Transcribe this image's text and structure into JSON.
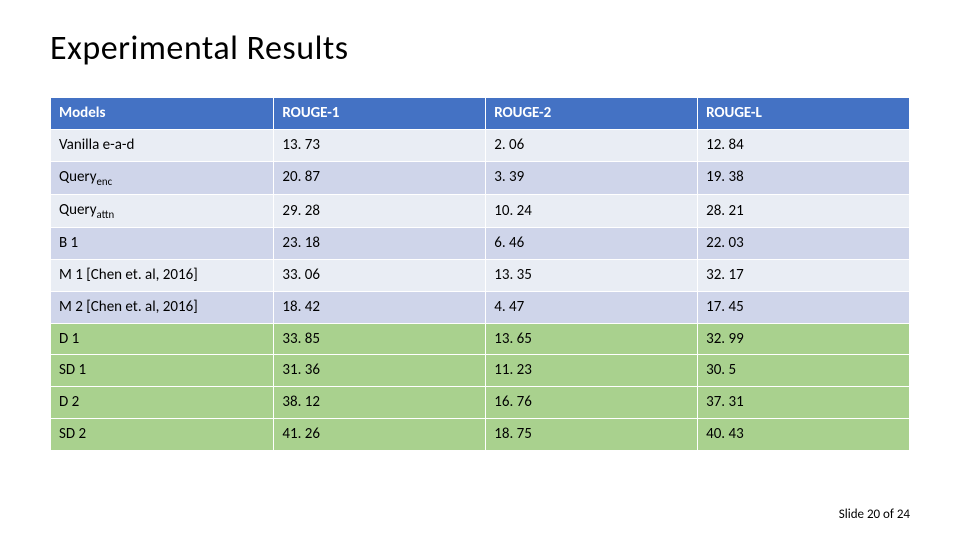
{
  "title": "Experimental Results",
  "footer": "Slide 20 of 24",
  "table": {
    "type": "table",
    "header_bg": "#4472c4",
    "header_fg": "#ffffff",
    "row_alt_light": "#e9edf4",
    "row_alt_dark": "#cfd5ea",
    "row_highlight": "#a9d18e",
    "border_color": "#ffffff",
    "title_fontsize": 34,
    "cell_fontsize": 15,
    "columns": [
      "Models",
      "ROUGE-1",
      "ROUGE-2",
      "ROUGE-L"
    ],
    "rows": [
      {
        "model_html": "Vanilla e-a-d",
        "r1": "13. 73",
        "r2": "2. 06",
        "rL": "12. 84",
        "highlight": false
      },
      {
        "model_html": "Query<span class=\"sub\">enc</span>",
        "r1": "20. 87",
        "r2": "3. 39",
        "rL": "19. 38",
        "highlight": false
      },
      {
        "model_html": "Query<span class=\"sub\">attn</span>",
        "r1": "29. 28",
        "r2": "10. 24",
        "rL": "28. 21",
        "highlight": false
      },
      {
        "model_html": "B 1",
        "r1": "23. 18",
        "r2": "6. 46",
        "rL": "22. 03",
        "highlight": false
      },
      {
        "model_html": "M 1 [Chen et. al, 2016]",
        "r1": "33. 06",
        "r2": "13. 35",
        "rL": "32. 17",
        "highlight": false
      },
      {
        "model_html": "M 2 [Chen et. al, 2016]",
        "r1": "18. 42",
        "r2": "4. 47",
        "rL": "17. 45",
        "highlight": false
      },
      {
        "model_html": "D 1",
        "r1": "33. 85",
        "r2": "13. 65",
        "rL": "32. 99",
        "highlight": true
      },
      {
        "model_html": "SD 1",
        "r1": "31. 36",
        "r2": "11. 23",
        "rL": "30. 5",
        "highlight": true
      },
      {
        "model_html": "D 2",
        "r1": "38. 12",
        "r2": "16. 76",
        "rL": "37. 31",
        "highlight": true
      },
      {
        "model_html": "SD 2",
        "r1": "41. 26",
        "r2": "18. 75",
        "rL": "40. 43",
        "highlight": true
      }
    ]
  }
}
